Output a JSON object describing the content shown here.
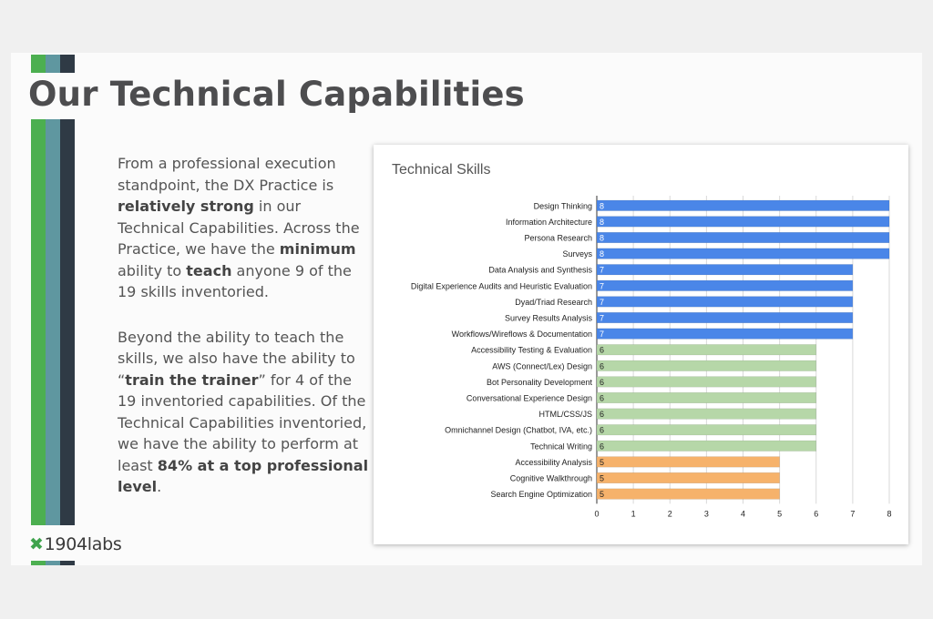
{
  "slide": {
    "title": "Our Technical Capabilities",
    "paragraph1": [
      {
        "text": "From a professional execution standpoint, the DX Practice is ",
        "bold": false
      },
      {
        "text": "relatively strong",
        "bold": true
      },
      {
        "text": " in our Technical Capabilities. Across the Practice, we have the ",
        "bold": false
      },
      {
        "text": "minimum",
        "bold": true
      },
      {
        "text": " ability to ",
        "bold": false
      },
      {
        "text": "teach",
        "bold": true
      },
      {
        "text": " anyone 9 of the 19 skills inventoried.",
        "bold": false
      }
    ],
    "paragraph2": [
      {
        "text": "Beyond the ability to teach the skills, we also have the ability to “",
        "bold": false
      },
      {
        "text": "train the trainer",
        "bold": true
      },
      {
        "text": "” for 4 of the 19 inventoried capabilities. Of the Technical Capabilities inventoried, we have the ability to perform at least ",
        "bold": false
      },
      {
        "text": "84% at a top professional level",
        "bold": true
      },
      {
        "text": ".",
        "bold": false
      }
    ],
    "logo": {
      "mark": "✖",
      "text": "1904labs"
    },
    "stripe_colors": [
      "#4caf50",
      "#5f97a0",
      "#2f3a45"
    ]
  },
  "chart_data": {
    "type": "bar",
    "orientation": "horizontal",
    "title": "Technical Skills",
    "categories": [
      "Design Thinking",
      "Information Architecture",
      "Persona Research",
      "Surveys",
      "Data Analysis and Synthesis",
      "Digital Experience Audits and Heuristic Evaluation",
      "Dyad/Triad Research",
      "Survey Results Analysis",
      "Workflows/Wireflows & Documentation",
      "Accessibility Testing & Evaluation",
      "AWS (Connect/Lex) Design",
      "Bot Personality Development",
      "Conversational Experience Design",
      "HTML/CSS/JS",
      "Omnichannel Design (Chatbot, IVA, etc.)",
      "Technical Writing",
      "Accessibility Analysis",
      "Cognitive Walkthrough",
      "Search Engine Optimization"
    ],
    "values": [
      8,
      8,
      8,
      8,
      7,
      7,
      7,
      7,
      7,
      6,
      6,
      6,
      6,
      6,
      6,
      6,
      5,
      5,
      5
    ],
    "bar_colors": {
      "8": "#4a86e8",
      "7": "#4a86e8",
      "6": "#b6d7a8",
      "5": "#f6b26b"
    },
    "xlim": [
      0,
      8
    ],
    "xticks": [
      0,
      1,
      2,
      3,
      4,
      5,
      6,
      7,
      8
    ],
    "grid": true,
    "data_labels": true,
    "xlabel": "",
    "ylabel": ""
  }
}
